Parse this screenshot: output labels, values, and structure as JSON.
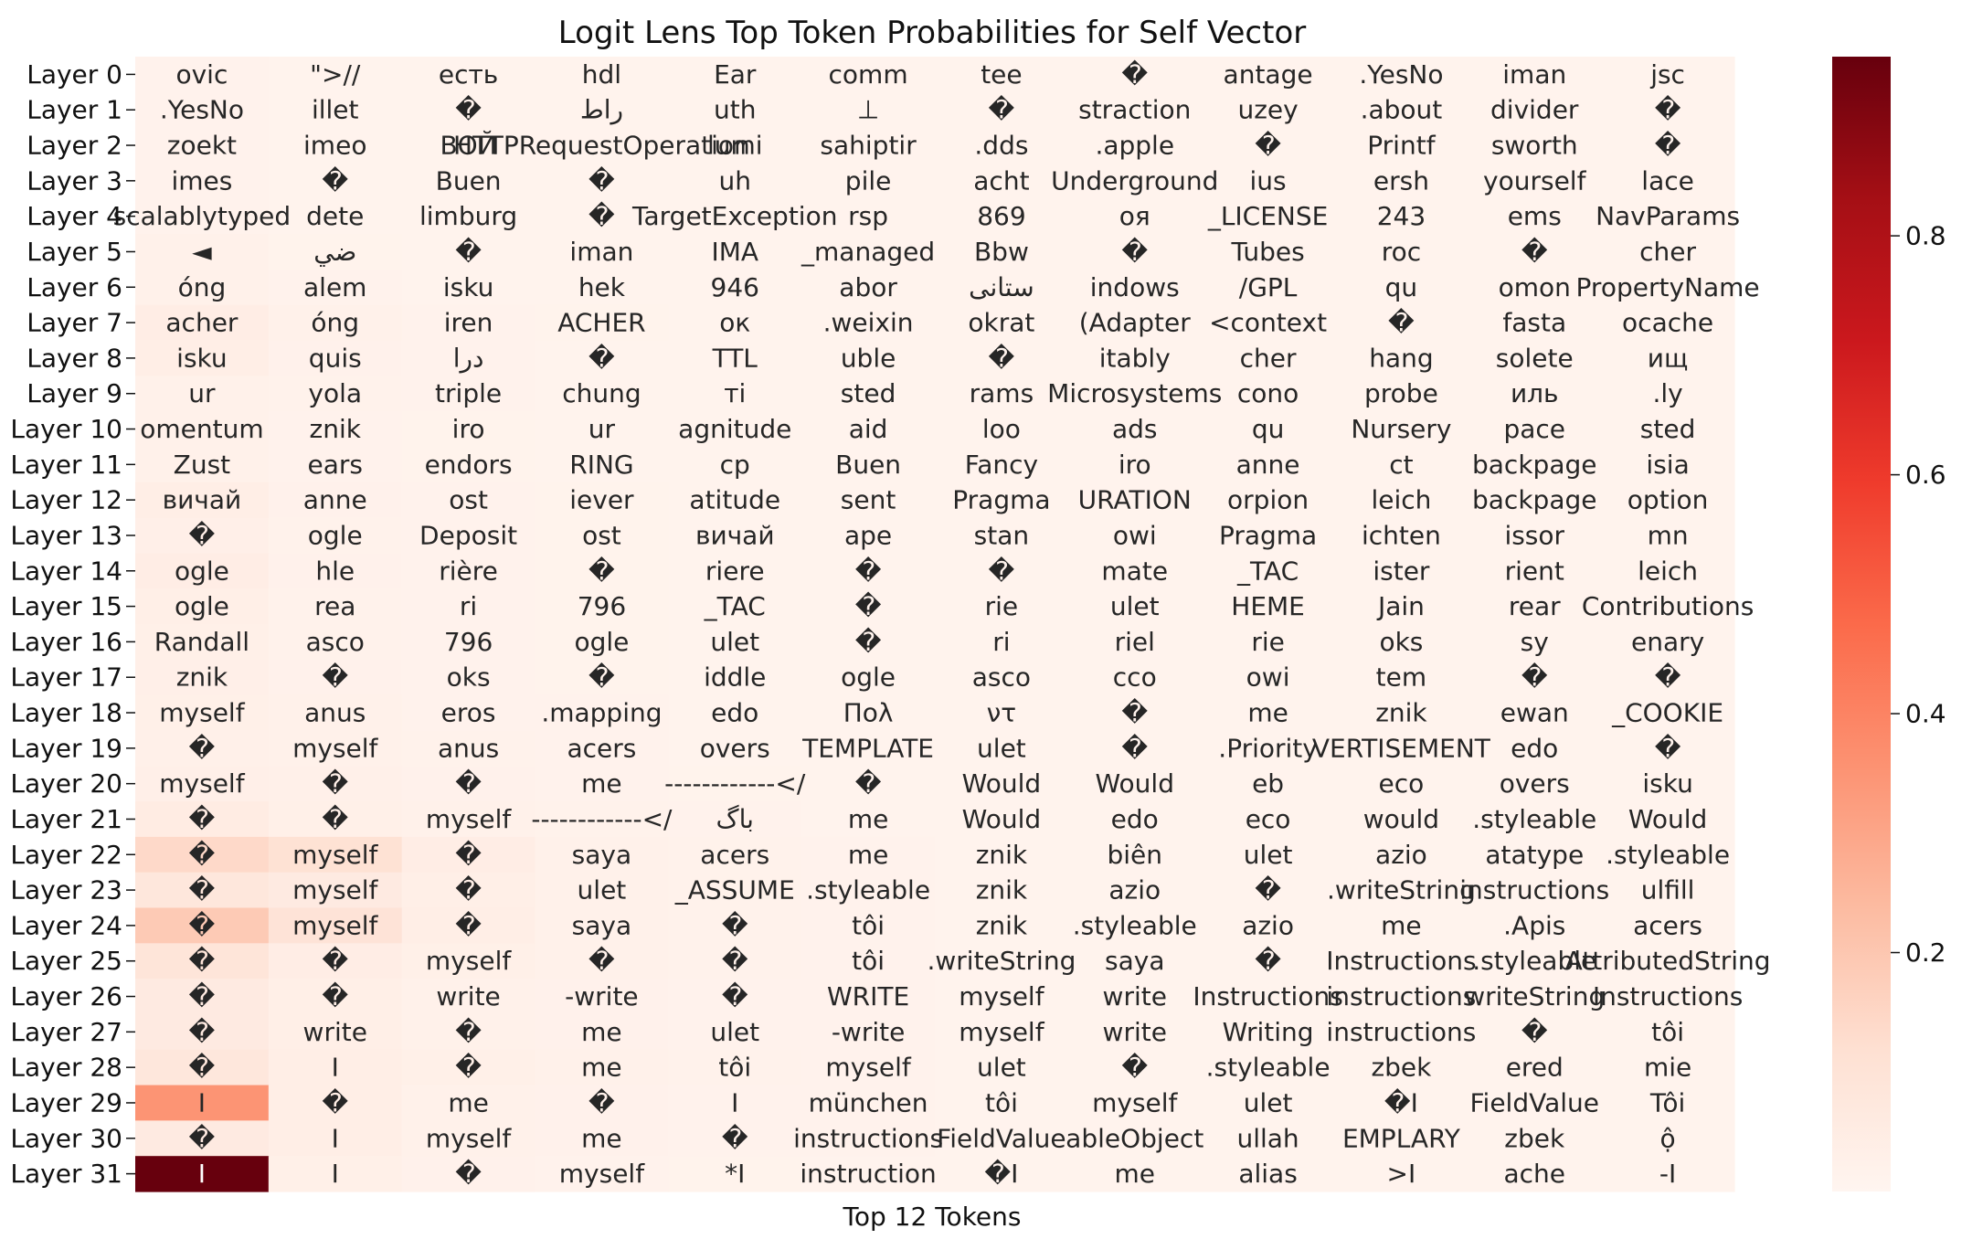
{
  "chart_data": {
    "type": "heatmap",
    "title": "Logit Lens Top Token Probabilities for Self Vector",
    "xlabel": "Top 12 Tokens",
    "ylabel": "",
    "colormap": "Reds",
    "colorbar": {
      "range": [
        0.0,
        0.95
      ],
      "ticks": [
        0.2,
        0.4,
        0.6,
        0.8
      ]
    },
    "rows": [
      "Layer 0",
      "Layer 1",
      "Layer 2",
      "Layer 3",
      "Layer 4",
      "Layer 5",
      "Layer 6",
      "Layer 7",
      "Layer 8",
      "Layer 9",
      "Layer 10",
      "Layer 11",
      "Layer 12",
      "Layer 13",
      "Layer 14",
      "Layer 15",
      "Layer 16",
      "Layer 17",
      "Layer 18",
      "Layer 19",
      "Layer 20",
      "Layer 21",
      "Layer 22",
      "Layer 23",
      "Layer 24",
      "Layer 25",
      "Layer 26",
      "Layer 27",
      "Layer 28",
      "Layer 29",
      "Layer 30",
      "Layer 31"
    ],
    "tokens": [
      [
        "ovic",
        "\">//",
        "есть",
        "hdl",
        "Ear",
        "comm",
        "tee",
        "�",
        "antage",
        ".YesNo",
        "iman",
        "jsc"
      ],
      [
        ".YesNo",
        "illet",
        "�",
        "راط",
        "uth",
        "⊥",
        "�",
        "straction",
        "uzey",
        ".about",
        "divider",
        "�"
      ],
      [
        "zoekt",
        "imeo",
        "ВОЙ",
        "HTTPRequestOperation",
        "lumi",
        "sahiptir",
        ".dds",
        ".apple",
        "�",
        "Printf",
        "sworth",
        "�"
      ],
      [
        "imes",
        "�",
        "Buen",
        "�",
        "uh",
        "pile",
        "acht",
        "Underground",
        "ius",
        "ersh",
        "yourself",
        "lace"
      ],
      [
        "scalablytyped",
        "dete",
        "limburg",
        "�",
        "TargetException",
        "rsp",
        "869",
        "оя",
        "_LICENSE",
        "243",
        "ems",
        "NavParams"
      ],
      [
        "◄",
        "ضي",
        "�",
        "iman",
        "IMA",
        "_managed",
        "Bbw",
        "�",
        "Tubes",
        "roc",
        "�",
        "cher"
      ],
      [
        "óng",
        "alem",
        "isku",
        "hek",
        "946",
        "abor",
        "ستانی",
        "indows",
        "/GPL",
        "qu",
        "omon",
        "PropertyName"
      ],
      [
        "acher",
        "óng",
        "iren",
        "ACHER",
        "ок",
        ".weixin",
        "okrat",
        "(Adapter",
        "<context",
        "�",
        "fasta",
        "ocache"
      ],
      [
        "isku",
        "quis",
        "درا",
        "�",
        "TTL",
        "uble",
        "�",
        "itably",
        "cher",
        "hang",
        "solete",
        "ищ"
      ],
      [
        "ur",
        "yola",
        "triple",
        "chung",
        "ті",
        "sted",
        "rams",
        "Microsystems",
        "cono",
        "probe",
        "иль",
        ".ly"
      ],
      [
        "omentum",
        "znik",
        "iro",
        "ur",
        "agnitude",
        "aid",
        "loo",
        "ads",
        "qu",
        "Nursery",
        "pace",
        "sted"
      ],
      [
        "Zust",
        "ears",
        "endors",
        "RING",
        "cp",
        "Buen",
        "Fancy",
        "iro",
        "anne",
        "ct",
        "backpage",
        "isia"
      ],
      [
        "вичай",
        "anne",
        "ost",
        "iever",
        "atitude",
        "sent",
        "Pragma",
        "URATION",
        "orpion",
        "leich",
        "backpage",
        "option"
      ],
      [
        "�",
        "ogle",
        "Deposit",
        "ost",
        "вичай",
        "ape",
        "stan",
        "owi",
        "Pragma",
        "ichten",
        "issor",
        "mn"
      ],
      [
        "ogle",
        "hle",
        "rière",
        "�",
        "riere",
        "�",
        "�",
        "mate",
        "_TAC",
        "ister",
        "rient",
        "leich"
      ],
      [
        "ogle",
        "rea",
        "ri",
        "796",
        "_TAC",
        "�",
        "rie",
        "ulet",
        "HEME",
        "Jain",
        "rear",
        "Contributions"
      ],
      [
        "Randall",
        "asco",
        "796",
        "ogle",
        "ulet",
        "�",
        "ri",
        "riel",
        "rie",
        "oks",
        "sy",
        "enary"
      ],
      [
        "znik",
        "�",
        "oks",
        "�",
        "iddle",
        "ogle",
        "asco",
        "cco",
        "owi",
        "tem",
        "�",
        "�"
      ],
      [
        "myself",
        "anus",
        "eros",
        ".mapping",
        "edo",
        "Πολ",
        "ντ",
        "�",
        "me",
        "znik",
        "ewan",
        "_COOKIE"
      ],
      [
        "�",
        "myself",
        "anus",
        "acers",
        "overs",
        "TEMPLATE",
        "ulet",
        "�",
        ".Priority",
        "VERTISEMENT",
        "edo",
        "�"
      ],
      [
        "myself",
        "�",
        "�",
        "me",
        "------------</",
        "�",
        "Would",
        "Would",
        "eb",
        "eco",
        "overs",
        "isku"
      ],
      [
        "�",
        "�",
        "myself",
        "------------</",
        "باگ",
        "me",
        "Would",
        "edo",
        "eco",
        "would",
        ".styleable",
        "Would"
      ],
      [
        "�",
        "myself",
        "�",
        "saya",
        "acers",
        "me",
        "znik",
        "biên",
        "ulet",
        "azio",
        "atatype",
        ".styleable"
      ],
      [
        "�",
        "myself",
        "�",
        "ulet",
        "_ASSUME",
        ".styleable",
        "znik",
        "azio",
        "�",
        ".writeString",
        "instructions",
        "ulfill"
      ],
      [
        "�",
        "myself",
        "�",
        "saya",
        "�",
        "tôi",
        "znik",
        ".styleable",
        "azio",
        "me",
        ".Apis",
        "acers"
      ],
      [
        "�",
        "�",
        "myself",
        "�",
        "�",
        "tôi",
        ".writeString",
        "saya",
        "�",
        "Instructions",
        ".styleable",
        "AttributedString"
      ],
      [
        "�",
        "�",
        "write",
        "-write",
        "�",
        "WRITE",
        "myself",
        "write",
        "Instructions",
        "instructions",
        "writeString",
        "Instructions"
      ],
      [
        "�",
        "write",
        "�",
        "me",
        "ulet",
        "-write",
        "myself",
        "write",
        "Writing",
        "instructions",
        "�",
        "tôi"
      ],
      [
        "�",
        "I",
        "�",
        "me",
        "tôi",
        "myself",
        "ulet",
        "�",
        ".styleable",
        "zbek",
        "ered",
        "mie"
      ],
      [
        "I",
        "�",
        "me",
        "�",
        "I",
        "münchen",
        "tôi",
        "myself",
        "ulet",
        "�I",
        "FieldValue",
        "Tôi"
      ],
      [
        "�",
        "I",
        "myself",
        "me",
        "�",
        "instructions",
        "FieldValue",
        "ableObject",
        "ullah",
        "EMPLARY",
        "zbek",
        "ộ"
      ],
      [
        "I",
        "I",
        "�",
        "myself",
        "*I",
        "instruction",
        "�I",
        "me",
        "alias",
        ">I",
        "ache",
        "-I"
      ]
    ],
    "values": [
      [
        0.016,
        0.012,
        0.012,
        0.011,
        0.011,
        0.011,
        0.011,
        0.011,
        0.011,
        0.011,
        0.011,
        0.011
      ],
      [
        0.015,
        0.012,
        0.012,
        0.011,
        0.011,
        0.011,
        0.011,
        0.011,
        0.011,
        0.011,
        0.011,
        0.011
      ],
      [
        0.016,
        0.012,
        0.012,
        0.011,
        0.011,
        0.011,
        0.011,
        0.011,
        0.011,
        0.011,
        0.011,
        0.011
      ],
      [
        0.017,
        0.013,
        0.012,
        0.012,
        0.011,
        0.011,
        0.011,
        0.011,
        0.011,
        0.011,
        0.011,
        0.011
      ],
      [
        0.016,
        0.013,
        0.012,
        0.012,
        0.011,
        0.011,
        0.011,
        0.011,
        0.011,
        0.011,
        0.011,
        0.011
      ],
      [
        0.022,
        0.014,
        0.013,
        0.012,
        0.012,
        0.011,
        0.011,
        0.011,
        0.011,
        0.011,
        0.011,
        0.011
      ],
      [
        0.023,
        0.015,
        0.013,
        0.012,
        0.012,
        0.012,
        0.011,
        0.011,
        0.011,
        0.011,
        0.011,
        0.011
      ],
      [
        0.045,
        0.022,
        0.016,
        0.014,
        0.013,
        0.012,
        0.012,
        0.012,
        0.011,
        0.011,
        0.011,
        0.011
      ],
      [
        0.038,
        0.02,
        0.015,
        0.013,
        0.012,
        0.012,
        0.012,
        0.011,
        0.011,
        0.011,
        0.011,
        0.011
      ],
      [
        0.025,
        0.018,
        0.015,
        0.013,
        0.012,
        0.012,
        0.012,
        0.011,
        0.011,
        0.011,
        0.011,
        0.011
      ],
      [
        0.022,
        0.017,
        0.014,
        0.013,
        0.012,
        0.012,
        0.012,
        0.011,
        0.011,
        0.011,
        0.011,
        0.011
      ],
      [
        0.022,
        0.017,
        0.014,
        0.013,
        0.012,
        0.012,
        0.012,
        0.011,
        0.011,
        0.011,
        0.011,
        0.011
      ],
      [
        0.04,
        0.02,
        0.016,
        0.014,
        0.013,
        0.012,
        0.012,
        0.012,
        0.011,
        0.011,
        0.011,
        0.011
      ],
      [
        0.032,
        0.019,
        0.015,
        0.014,
        0.013,
        0.012,
        0.012,
        0.012,
        0.011,
        0.011,
        0.011,
        0.011
      ],
      [
        0.045,
        0.02,
        0.016,
        0.014,
        0.013,
        0.012,
        0.012,
        0.012,
        0.011,
        0.011,
        0.011,
        0.011
      ],
      [
        0.035,
        0.019,
        0.016,
        0.014,
        0.013,
        0.012,
        0.012,
        0.012,
        0.011,
        0.011,
        0.011,
        0.011
      ],
      [
        0.03,
        0.019,
        0.016,
        0.014,
        0.013,
        0.012,
        0.012,
        0.012,
        0.011,
        0.011,
        0.011,
        0.011
      ],
      [
        0.032,
        0.02,
        0.016,
        0.014,
        0.013,
        0.012,
        0.012,
        0.012,
        0.011,
        0.011,
        0.011,
        0.011
      ],
      [
        0.03,
        0.022,
        0.017,
        0.015,
        0.013,
        0.012,
        0.012,
        0.012,
        0.011,
        0.011,
        0.011,
        0.011
      ],
      [
        0.028,
        0.022,
        0.018,
        0.015,
        0.013,
        0.012,
        0.012,
        0.012,
        0.011,
        0.011,
        0.011,
        0.011
      ],
      [
        0.033,
        0.028,
        0.02,
        0.016,
        0.014,
        0.013,
        0.012,
        0.012,
        0.011,
        0.011,
        0.011,
        0.011
      ],
      [
        0.05,
        0.03,
        0.025,
        0.018,
        0.015,
        0.013,
        0.012,
        0.012,
        0.012,
        0.011,
        0.011,
        0.011
      ],
      [
        0.14,
        0.11,
        0.045,
        0.025,
        0.018,
        0.015,
        0.013,
        0.012,
        0.012,
        0.012,
        0.011,
        0.011
      ],
      [
        0.08,
        0.06,
        0.035,
        0.022,
        0.018,
        0.015,
        0.013,
        0.012,
        0.012,
        0.012,
        0.011,
        0.011
      ],
      [
        0.19,
        0.1,
        0.04,
        0.025,
        0.018,
        0.015,
        0.013,
        0.012,
        0.012,
        0.012,
        0.011,
        0.011
      ],
      [
        0.09,
        0.045,
        0.03,
        0.022,
        0.018,
        0.015,
        0.013,
        0.012,
        0.012,
        0.012,
        0.011,
        0.011
      ],
      [
        0.06,
        0.035,
        0.025,
        0.02,
        0.017,
        0.015,
        0.013,
        0.012,
        0.012,
        0.012,
        0.011,
        0.011
      ],
      [
        0.06,
        0.035,
        0.025,
        0.02,
        0.017,
        0.015,
        0.013,
        0.012,
        0.012,
        0.012,
        0.011,
        0.011
      ],
      [
        0.08,
        0.04,
        0.03,
        0.025,
        0.018,
        0.015,
        0.013,
        0.012,
        0.012,
        0.012,
        0.011,
        0.011
      ],
      [
        0.35,
        0.04,
        0.025,
        0.02,
        0.017,
        0.015,
        0.013,
        0.012,
        0.012,
        0.012,
        0.011,
        0.011
      ],
      [
        0.06,
        0.04,
        0.025,
        0.02,
        0.017,
        0.015,
        0.013,
        0.012,
        0.012,
        0.012,
        0.011,
        0.011
      ],
      [
        0.95,
        0.03,
        0.02,
        0.016,
        0.014,
        0.013,
        0.012,
        0.012,
        0.012,
        0.011,
        0.011,
        0.011
      ]
    ]
  }
}
